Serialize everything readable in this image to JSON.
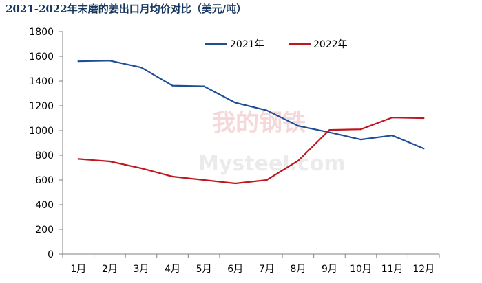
{
  "chart_data": {
    "type": "line",
    "title": "2021-2022年末磨的姜出口月均价对比（美元/吨）",
    "categories": [
      "1月",
      "2月",
      "3月",
      "4月",
      "5月",
      "6月",
      "7月",
      "8月",
      "9月",
      "10月",
      "11月",
      "12月"
    ],
    "ylim": [
      0,
      1800
    ],
    "yticks": [
      0,
      200,
      400,
      600,
      800,
      1000,
      1200,
      1400,
      1600,
      1800
    ],
    "grid": false,
    "legend_position": "top",
    "series": [
      {
        "name": "2021年",
        "color": "#1f4e96",
        "values": [
          1560,
          1565,
          1510,
          1363,
          1358,
          1225,
          1163,
          1038,
          985,
          927,
          960,
          855
        ]
      },
      {
        "name": "2022年",
        "color": "#c0171e",
        "values": [
          770,
          750,
          695,
          628,
          600,
          572,
          600,
          755,
          1005,
          1010,
          1105,
          1100
        ]
      }
    ]
  },
  "watermark": {
    "text_cn": "我的钢铁",
    "text_en": "Mysteel.com"
  }
}
